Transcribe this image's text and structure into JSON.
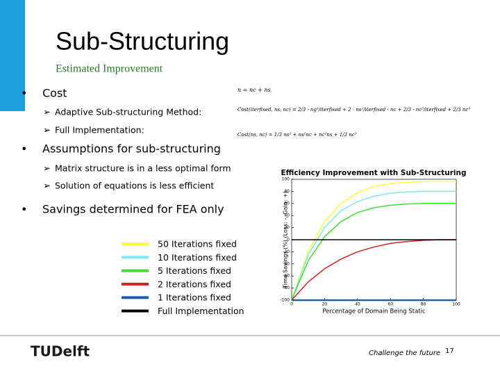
{
  "header": {
    "title": "Sub-Structuring",
    "subtitle": "Estimated Improvement"
  },
  "bullets": [
    {
      "text": "Cost",
      "subs": [
        "Adaptive Sub-structuring Method:",
        "Full Implementation:"
      ]
    },
    {
      "text": "Assumptions for sub-structuring",
      "subs": [
        "Matrix structure is in a less optimal form",
        "Solution of equations is less efficient"
      ]
    },
    {
      "text": "Savings determined for FEA only",
      "subs": []
    }
  ],
  "equations": [
    "n = nc + ns",
    "Cost(iterfixed, ns, nc) = 2/3 · ng³/iterfixed + 2 · ns²/iterfixed · nc + 2/3 · nc³/iterfixed + 2/3 nc³",
    "Cost(ns, nc) = 1/3 ns³ + ns²nc + nc²ns + 1/3 nc³"
  ],
  "chart_data": {
    "type": "line",
    "title": "Efficiency Improvement with Sub-Structuring",
    "x_label": "Percentage of Domain Being Static",
    "y_label": "Time Savings (%) (Loss: -, Gain: +)",
    "x": [
      0,
      10,
      20,
      30,
      40,
      50,
      60,
      70,
      80,
      90,
      100
    ],
    "series": [
      {
        "name": "50 Iterations fixed",
        "color": "#ffff33",
        "values": [
          -100,
          -20,
          30,
          60,
          78,
          88,
          93,
          95,
          96,
          96,
          96
        ]
      },
      {
        "name": "10 Iterations fixed",
        "color": "#7fe8f0",
        "values": [
          -100,
          -25,
          20,
          48,
          63,
          72,
          77,
          79,
          80,
          80,
          80
        ]
      },
      {
        "name": "5 Iterations fixed",
        "color": "#44dd33",
        "values": [
          -100,
          -35,
          5,
          30,
          45,
          53,
          57,
          59,
          60,
          60,
          60
        ]
      },
      {
        "name": "2 Iterations fixed",
        "color": "#cc2222",
        "values": [
          -100,
          -70,
          -48,
          -32,
          -20,
          -12,
          -6,
          -3,
          -1,
          0,
          0
        ]
      },
      {
        "name": "1 Iterations fixed",
        "color": "#1f5fb0",
        "values": [
          -100,
          -100,
          -100,
          -100,
          -100,
          -100,
          -100,
          -100,
          -100,
          -100,
          -100
        ]
      },
      {
        "name": "Full Implementation",
        "color": "#000000",
        "values": [
          0,
          0,
          0,
          0,
          0,
          0,
          0,
          0,
          0,
          0,
          0
        ]
      }
    ],
    "xlim": [
      0,
      100
    ],
    "xticks": [
      0,
      20,
      40,
      60,
      80,
      100
    ],
    "ylim": [
      -100,
      100
    ],
    "yticks": [
      -100,
      -80,
      -60,
      -40,
      -20,
      0,
      20,
      40,
      60,
      80,
      100
    ]
  },
  "footer": {
    "logo": "TUDelft",
    "tagline": "Challenge the future",
    "page": "17"
  }
}
